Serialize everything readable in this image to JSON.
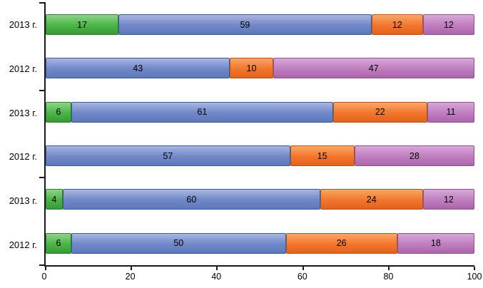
{
  "chart_data": {
    "type": "bar",
    "orientation": "horizontal",
    "stacked": true,
    "title": "",
    "xlabel": "",
    "ylabel": "",
    "xlim": [
      0,
      100
    ],
    "x_ticks": [
      0,
      20,
      40,
      60,
      80,
      100
    ],
    "grid": false,
    "legend": false,
    "categories": [
      "2013 г.",
      "2012 г.",
      "2013 г.",
      "2012 г.",
      "2013 г.",
      "2012 г."
    ],
    "series": [
      {
        "name": "green",
        "color": "#4CB648",
        "light": "#8FD489",
        "dark": "#379A35",
        "border": "#2E7D32",
        "values": [
          17,
          0,
          6,
          0,
          4,
          6
        ]
      },
      {
        "name": "blue",
        "color": "#7289C8",
        "light": "#A8B6E0",
        "dark": "#5E78BC",
        "border": "#3D5A98",
        "values": [
          59,
          43,
          61,
          57,
          60,
          50
        ]
      },
      {
        "name": "orange",
        "color": "#F4772E",
        "light": "#F9A868",
        "dark": "#E2621C",
        "border": "#B5541C",
        "values": [
          12,
          10,
          22,
          15,
          24,
          26
        ]
      },
      {
        "name": "purple",
        "color": "#C07FC0",
        "light": "#D8A8D8",
        "dark": "#AD66AD",
        "border": "#8A538A",
        "values": [
          12,
          47,
          11,
          28,
          12,
          18
        ]
      }
    ],
    "group_tick_positions_pct": [
      0,
      33.3333,
      66.6667,
      100
    ]
  }
}
